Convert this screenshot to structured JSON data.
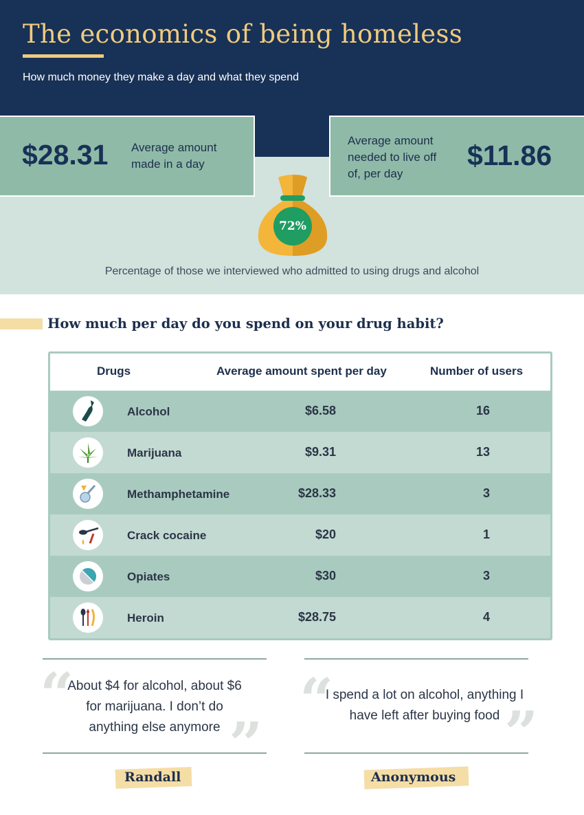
{
  "header": {
    "title": "The economics of being homeless",
    "subtitle": "How much money they make a day and what they spend"
  },
  "stats": {
    "made": {
      "amount": "$28.31",
      "desc_line1": "Average amount",
      "desc_line2": "made in a day"
    },
    "needed": {
      "amount": "$11.86",
      "desc_line1": "Average amount",
      "desc_line2": "needed to live off",
      "desc_line3": "of, per day"
    },
    "drug_use": {
      "percent": "72%",
      "caption": "Percentage of those we interviewed who admitted to using drugs and alcohol"
    }
  },
  "section": {
    "title": "How much per day do you spend on your drug habit?"
  },
  "table": {
    "headers": {
      "drugs": "Drugs",
      "amount": "Average amount spent per day",
      "users": "Number of users"
    },
    "rows": [
      {
        "icon": "bottle-icon",
        "drug": "Alcohol",
        "amount": "$6.58",
        "users": "16"
      },
      {
        "icon": "cannabis-leaf-icon",
        "drug": "Marijuana",
        "amount": "$9.31",
        "users": "13"
      },
      {
        "icon": "meth-pipe-icon",
        "drug": "Methamphetamine",
        "amount": "$28.33",
        "users": "3"
      },
      {
        "icon": "crack-spoon-icon",
        "drug": "Crack cocaine",
        "amount": "$20",
        "users": "1"
      },
      {
        "icon": "pill-icon",
        "drug": "Opiates",
        "amount": "$30",
        "users": "3"
      },
      {
        "icon": "syringe-spoon-icon",
        "drug": "Heroin",
        "amount": "$28.75",
        "users": "4"
      }
    ]
  },
  "quotes": [
    {
      "line1": "About $4 for alcohol, about $6",
      "line2": "for marijuana. I don’t do",
      "line3": "anything else anymore",
      "author": "Randall"
    },
    {
      "line1": "I spend a lot on alcohol, anything I",
      "line2": "have left after buying food",
      "author": "Anonymous"
    }
  ],
  "colors": {
    "navy": "#183156",
    "gold": "#f0cb7e",
    "sage": "#8fbaa8",
    "mint": "#d2e2dd",
    "row_dark": "#a9cbbf",
    "row_light": "#c3dad2",
    "green": "#1f9d63"
  }
}
